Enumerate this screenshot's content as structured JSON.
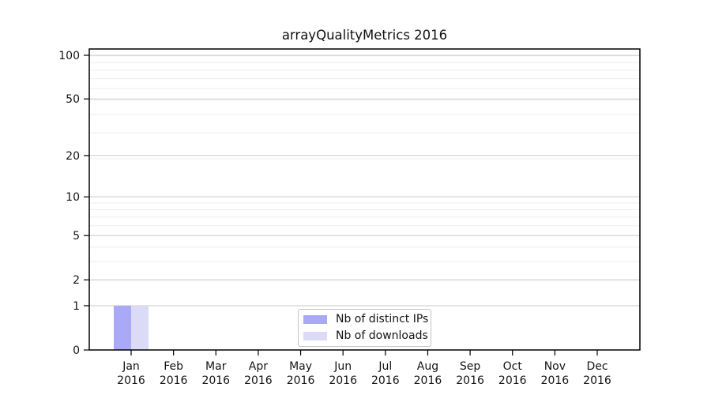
{
  "chart_data": {
    "type": "bar",
    "title": "arrayQualityMetrics 2016",
    "categories": [
      "Jan 2016",
      "Feb 2016",
      "Mar 2016",
      "Apr 2016",
      "May 2016",
      "Jun 2016",
      "Jul 2016",
      "Aug 2016",
      "Sep 2016",
      "Oct 2016",
      "Nov 2016",
      "Dec 2016"
    ],
    "series": [
      {
        "name": "Nb of distinct IPs",
        "color": "#a9a9f8",
        "values": [
          1,
          0,
          0,
          0,
          0,
          0,
          0,
          0,
          0,
          0,
          0,
          0
        ]
      },
      {
        "name": "Nb of downloads",
        "color": "#dbdbf8",
        "values": [
          1,
          0,
          0,
          0,
          0,
          0,
          0,
          0,
          0,
          0,
          0,
          0
        ]
      }
    ],
    "yscale": "log10(1+y)",
    "ylim": [
      0,
      110
    ],
    "yticks": [
      0,
      1,
      2,
      5,
      10,
      20,
      50,
      100
    ],
    "minor_gridlines": [
      1,
      2,
      3,
      4,
      5,
      6,
      7,
      8,
      9,
      19,
      29,
      39,
      49,
      59,
      69,
      79,
      89,
      99
    ],
    "grid": "horizontal",
    "legend_position": "lower center",
    "colors": {
      "major_grid": "#c9c9c9",
      "minor_grid": "#ededed",
      "axis": "#000000",
      "text": "#141414",
      "background": "#ffffff",
      "legend_border": "#c2c2c2"
    }
  }
}
